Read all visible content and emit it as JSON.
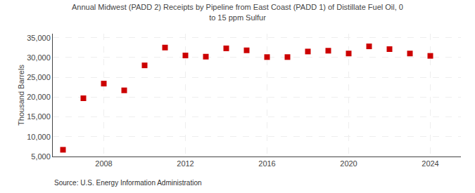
{
  "chart_data": {
    "type": "scatter",
    "title": "Annual Midwest (PADD 2) Receipts by Pipeline from East Coast (PADD 1) of Distillate Fuel Oil, 0\nto 15 ppm Sulfur",
    "ylabel": "Thousand Barrels",
    "source": "Source: U.S. Energy Information Administration",
    "x": [
      2006,
      2007,
      2008,
      2009,
      2010,
      2011,
      2012,
      2013,
      2014,
      2015,
      2016,
      2017,
      2018,
      2019,
      2020,
      2021,
      2022,
      2023,
      2024
    ],
    "values": [
      6700,
      19700,
      23400,
      21700,
      28000,
      32500,
      30500,
      30200,
      32300,
      31800,
      30100,
      30100,
      31500,
      31700,
      31000,
      32800,
      32100,
      31000,
      30400
    ],
    "color": "#cc0000",
    "marker": "square",
    "xlim": [
      2005.5,
      2025.5
    ],
    "xticks": [
      2008,
      2012,
      2016,
      2020,
      2024
    ],
    "ylim": [
      5000,
      36000
    ],
    "yticks": [
      {
        "value": 5000,
        "label": "5,000"
      },
      {
        "value": 10000,
        "label": "10,000"
      },
      {
        "value": 15000,
        "label": "15,000"
      },
      {
        "value": 20000,
        "label": "20,000"
      },
      {
        "value": 25000,
        "label": "25,000"
      },
      {
        "value": 30000,
        "label": "30,000"
      },
      {
        "value": 35000,
        "label": "35,000"
      }
    ],
    "grid": true
  }
}
